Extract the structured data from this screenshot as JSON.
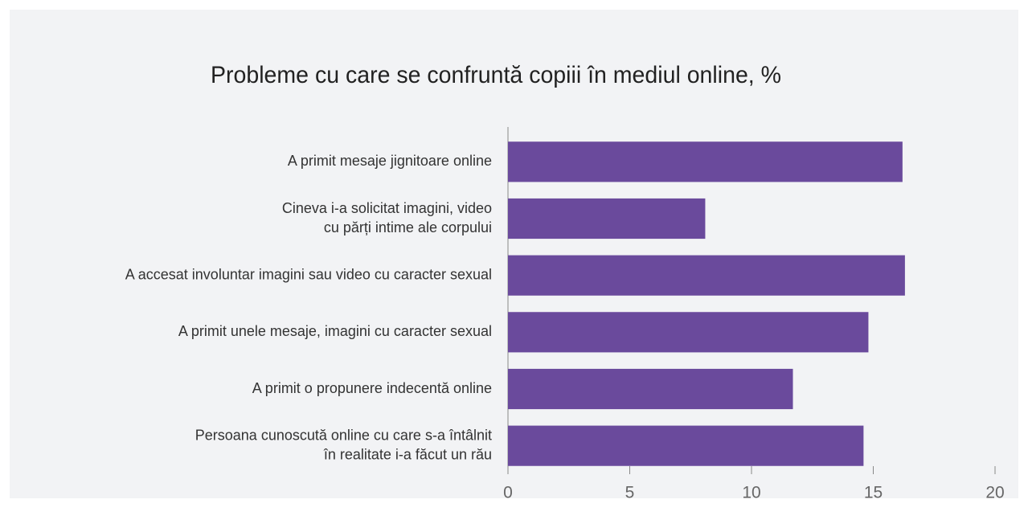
{
  "chart_data": {
    "type": "bar",
    "orientation": "horizontal",
    "title": "Probleme cu care se confruntă copiii în mediul online, %",
    "categories": [
      "A primit mesaje jignitoare online",
      "Cineva i-a solicitat imagini, video\ncu părți intime ale corpului",
      "A accesat involuntar imagini sau video cu caracter sexual",
      "A primit unele mesaje, imagini cu caracter sexual",
      "A primit o propunere indecentă online",
      "Persoana cunoscută online cu care s-a întâlnit\nîn realitate i-a făcut un rău"
    ],
    "values": [
      16.2,
      8.1,
      16.3,
      14.8,
      11.7,
      14.6
    ],
    "color": "#6a4a9c",
    "xlim": [
      0,
      20
    ],
    "xticks": [
      0,
      5,
      10,
      15,
      20
    ],
    "grid": false
  }
}
